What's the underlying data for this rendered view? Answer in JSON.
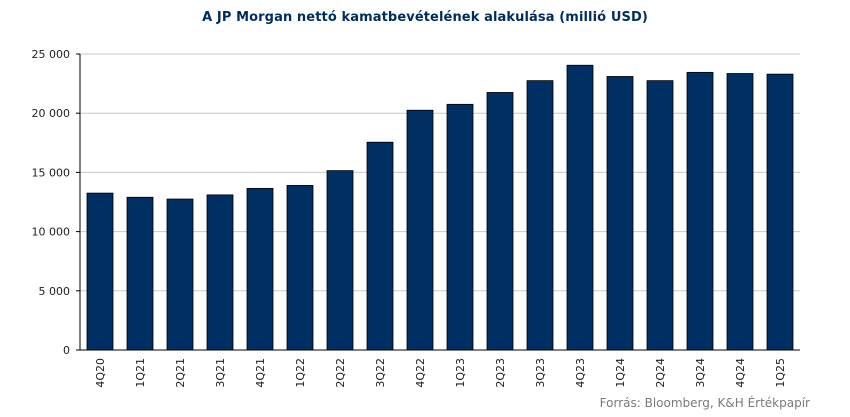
{
  "chart_data": {
    "type": "bar",
    "title": "A JP Morgan nettó kamatbevételének  alakulása (millió USD)",
    "source": "Forrás: Bloomberg,  K&H Értékpapír",
    "categories": [
      "4Q20",
      "1Q21",
      "2Q21",
      "3Q21",
      "4Q21",
      "1Q22",
      "2Q22",
      "3Q22",
      "4Q22",
      "1Q23",
      "2Q23",
      "3Q23",
      "4Q23",
      "1Q24",
      "2Q24",
      "3Q24",
      "4Q24",
      "1Q25"
    ],
    "values": [
      13250,
      12900,
      12750,
      13100,
      13650,
      13900,
      15150,
      17550,
      20250,
      20750,
      21750,
      22750,
      24050,
      23100,
      22750,
      23450,
      23350,
      23300
    ],
    "ylim": [
      0,
      25000
    ],
    "yticks": [
      0,
      5000,
      10000,
      15000,
      20000,
      25000
    ],
    "ytick_labels": [
      "0",
      "5 000",
      "10 000",
      "15 000",
      "20 000",
      "25 000"
    ],
    "grid": true,
    "bar_color": "#002f63"
  }
}
